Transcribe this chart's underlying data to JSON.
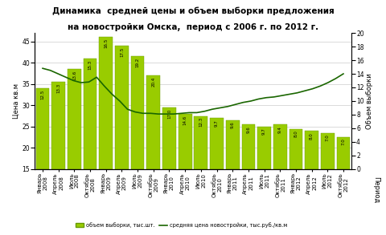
{
  "title_line1": "Динамика  средней цены и объем выборки предложения",
  "title_line2": "на новостройки Омска,  период с 2006 г. по 2012 г.",
  "ylabel_left": "Цена кв.м",
  "ylabel_right": "Объем выборки",
  "xlabel": "Период",
  "legend_bar": "объем выборки, тыс.шт.",
  "legend_line": "средняя цена новостройки, тыс.руб./кв.м",
  "categories": [
    "Январь\n2008",
    "Апрель\n2008",
    "Июль\n2008",
    "Октябрь\n2008",
    "Январь\n2009",
    "Апрель\n2009",
    "Июль\n2009",
    "Октябрь\n2009",
    "Январь\n2010",
    "Апрель\n2010",
    "Июль\n2010",
    "Октябрь\n2010",
    "Январь\n2011",
    "Апрель\n2011",
    "Июль\n2011",
    "Октябрь\n2011",
    "Январь\n2012",
    "Апрель\n2012",
    "Июль\n2012",
    "Октябрь\n2012"
  ],
  "bar_heights": [
    34.0,
    35.5,
    38.5,
    41.0,
    46.0,
    44.0,
    41.5,
    37.0,
    29.5,
    28.0,
    27.5,
    27.0,
    26.5,
    25.5,
    25.0,
    25.5,
    24.5,
    24.0,
    23.5,
    22.5
  ],
  "bar_labels": [
    "12.5",
    "13.3",
    "13.6",
    "15.3",
    "16.5",
    "17.5",
    "19.2",
    "20.4",
    "17.0",
    "14.6",
    "12.3",
    "9.7",
    "9.6",
    "9.6",
    "9.7",
    "9.4",
    "8.0",
    "8.0",
    "7.0",
    "7.0"
  ],
  "line_values": [
    14.8,
    14.5,
    14.0,
    13.5,
    13.0,
    12.7,
    12.8,
    13.5,
    12.2,
    11.0,
    10.0,
    8.8,
    8.4,
    8.2,
    8.2,
    8.1,
    8.1,
    8.1,
    8.2,
    8.3,
    8.3,
    8.5,
    8.8,
    9.0,
    9.2,
    9.5,
    9.8,
    10.0,
    10.3,
    10.5,
    10.6,
    10.8,
    11.0,
    11.2,
    11.5,
    11.8,
    12.2,
    12.7,
    13.3,
    14.0
  ],
  "bar_color": "#99cc00",
  "bar_edge_color": "#669900",
  "line_color": "#1a6600",
  "grid_color": "#cccccc",
  "background_color": "#ffffff",
  "ylim_left": [
    15,
    47
  ],
  "ylim_right": [
    0,
    20
  ],
  "yticks_left": [
    15,
    20,
    25,
    30,
    35,
    40,
    45
  ],
  "yticks_right": [
    0,
    2,
    4,
    6,
    8,
    10,
    12,
    14,
    16,
    18,
    20
  ],
  "title_fontsize": 7.5,
  "axis_label_fontsize": 6,
  "tick_fontsize": 5.5,
  "bar_label_fontsize": 4.0
}
